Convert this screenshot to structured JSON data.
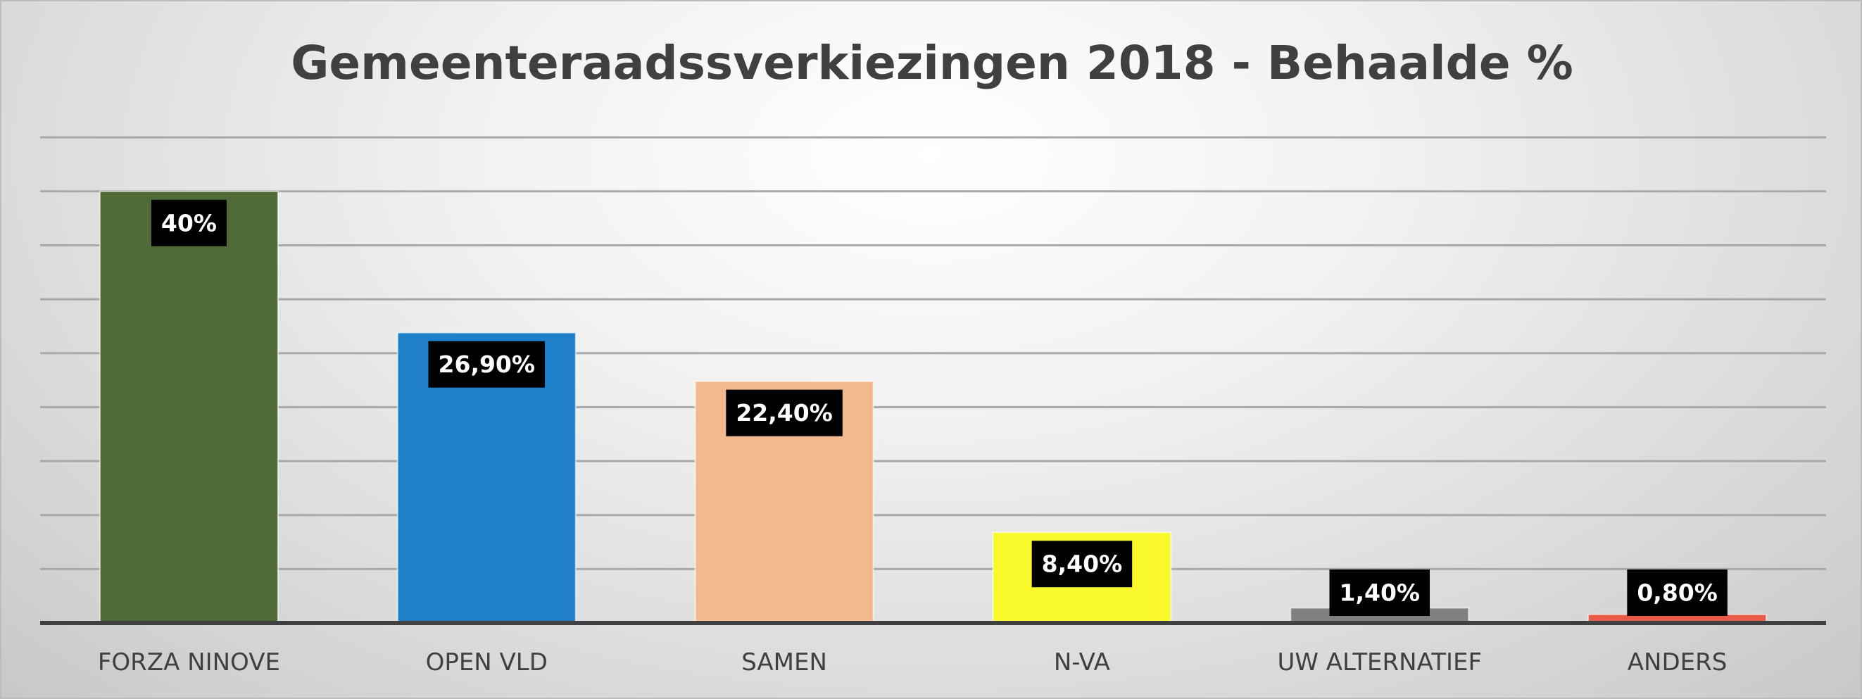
{
  "chart_data": {
    "type": "bar",
    "title": "Gemeenteraadssverkiezingen 2018 - Behaalde %",
    "categories": [
      "FORZA NINOVE",
      "OPEN VLD",
      "SAMEN",
      "N-VA",
      "UW ALTERNATIEF",
      "ANDERS"
    ],
    "values": [
      40,
      26.9,
      22.4,
      8.4,
      1.4,
      0.8
    ],
    "data_labels": [
      "40%",
      "26,90%",
      "22,40%",
      "8,40%",
      "1,40%",
      "0,80%"
    ],
    "colors": [
      "#4f6b38",
      "#1f7fc8",
      "#f2b98f",
      "#f8f82a",
      "#808080",
      "#e85b48"
    ],
    "ylim": [
      0,
      45
    ],
    "y_tick_step": 5,
    "y_tick_labels_shown": false,
    "grid": true,
    "legend": "none",
    "xlabel": "",
    "ylabel": ""
  }
}
